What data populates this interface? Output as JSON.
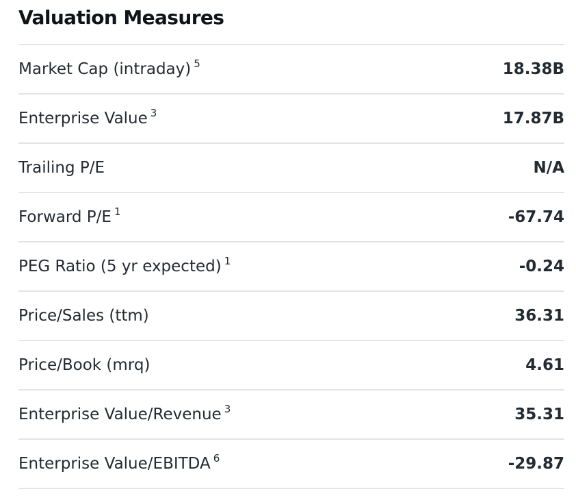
{
  "section": {
    "title": "Valuation Measures"
  },
  "rows": [
    {
      "label": "Market Cap (intraday)",
      "sup": "5",
      "value": "18.38B"
    },
    {
      "label": "Enterprise Value",
      "sup": "3",
      "value": "17.87B"
    },
    {
      "label": "Trailing P/E",
      "sup": "",
      "value": "N/A"
    },
    {
      "label": "Forward P/E",
      "sup": "1",
      "value": "-67.74"
    },
    {
      "label": "PEG Ratio (5 yr expected)",
      "sup": "1",
      "value": "-0.24"
    },
    {
      "label": "Price/Sales (ttm)",
      "sup": "",
      "value": "36.31"
    },
    {
      "label": "Price/Book (mrq)",
      "sup": "",
      "value": "4.61"
    },
    {
      "label": "Enterprise Value/Revenue",
      "sup": "3",
      "value": "35.31"
    },
    {
      "label": "Enterprise Value/EBITDA",
      "sup": "6",
      "value": "-29.87"
    }
  ]
}
